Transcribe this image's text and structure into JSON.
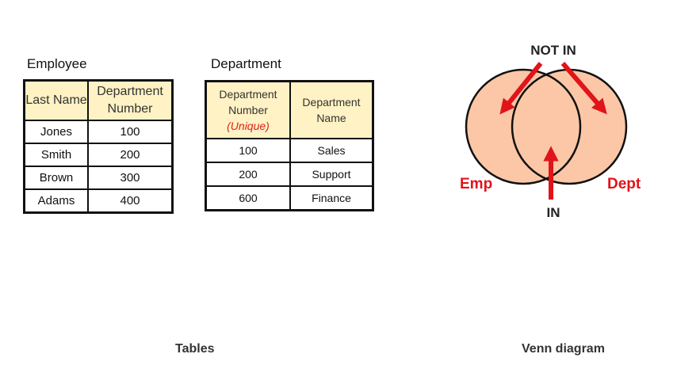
{
  "employee": {
    "title": "Employee",
    "headers": [
      "Last Name",
      "Department Number"
    ],
    "rows": [
      [
        "Jones",
        "100"
      ],
      [
        "Smith",
        "200"
      ],
      [
        "Brown",
        "300"
      ],
      [
        "Adams",
        "400"
      ]
    ]
  },
  "department": {
    "title": "Department",
    "headers": [
      "Department Number",
      "Department Name"
    ],
    "header_note": "(Unique)",
    "rows": [
      [
        "100",
        "Sales"
      ],
      [
        "200",
        "Support"
      ],
      [
        "600",
        "Finance"
      ]
    ]
  },
  "venn": {
    "not_in_label": "NOT IN",
    "in_label": "IN",
    "left_set_label": "Emp",
    "right_set_label": "Dept",
    "fill_color": "#fcc7a6",
    "arrow_color": "#e0141a"
  },
  "captions": {
    "tables": "Tables",
    "venn": "Venn diagram"
  }
}
